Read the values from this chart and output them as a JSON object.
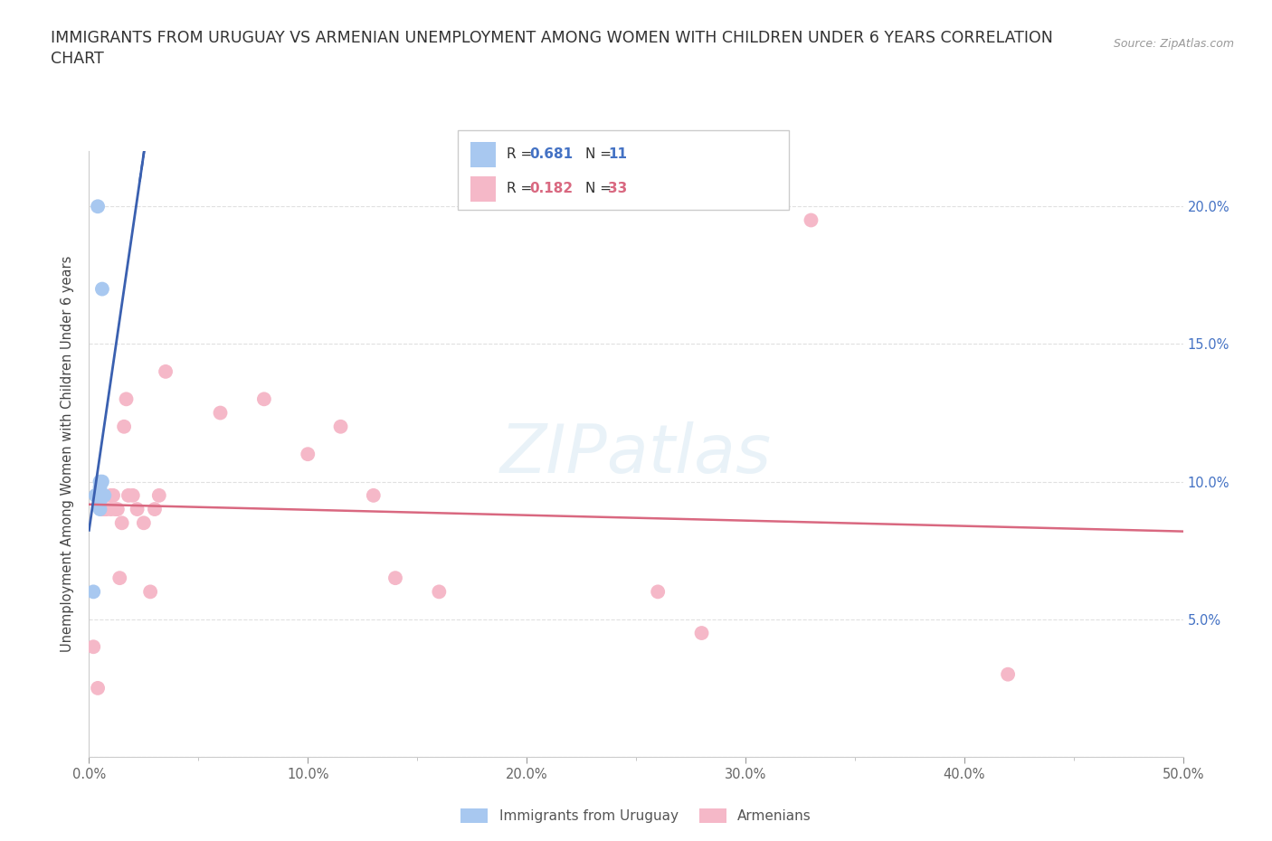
{
  "title_line1": "IMMIGRANTS FROM URUGUAY VS ARMENIAN UNEMPLOYMENT AMONG WOMEN WITH CHILDREN UNDER 6 YEARS CORRELATION",
  "title_line2": "CHART",
  "source": "Source: ZipAtlas.com",
  "ylabel": "Unemployment Among Women with Children Under 6 years",
  "watermark": "ZIPatlas",
  "xlim": [
    0,
    0.5
  ],
  "ylim": [
    0,
    0.22
  ],
  "xticks": [
    0.0,
    0.1,
    0.2,
    0.3,
    0.4,
    0.5
  ],
  "yticks": [
    0.0,
    0.05,
    0.1,
    0.15,
    0.2
  ],
  "xtick_labels": [
    "0.0%",
    "10.0%",
    "20.0%",
    "30.0%",
    "40.0%",
    "50.0%"
  ],
  "ytick_labels_right": [
    "",
    "5.0%",
    "10.0%",
    "15.0%",
    "20.0%"
  ],
  "blue_color": "#a8c8f0",
  "blue_line_color": "#3a60b0",
  "pink_color": "#f5b8c8",
  "pink_line_color": "#d96880",
  "legend_label1": "Immigrants from Uruguay",
  "legend_label2": "Armenians",
  "blue_x": [
    0.002,
    0.003,
    0.004,
    0.005,
    0.005,
    0.005,
    0.005,
    0.005,
    0.006,
    0.006,
    0.007
  ],
  "blue_y": [
    0.06,
    0.095,
    0.2,
    0.1,
    0.098,
    0.095,
    0.093,
    0.09,
    0.17,
    0.1,
    0.095
  ],
  "pink_x": [
    0.002,
    0.004,
    0.006,
    0.007,
    0.008,
    0.01,
    0.01,
    0.011,
    0.012,
    0.013,
    0.014,
    0.015,
    0.016,
    0.017,
    0.018,
    0.02,
    0.022,
    0.025,
    0.028,
    0.03,
    0.032,
    0.035,
    0.06,
    0.08,
    0.1,
    0.115,
    0.13,
    0.14,
    0.16,
    0.26,
    0.28,
    0.33,
    0.42
  ],
  "pink_y": [
    0.04,
    0.025,
    0.09,
    0.09,
    0.09,
    0.095,
    0.09,
    0.095,
    0.09,
    0.09,
    0.065,
    0.085,
    0.12,
    0.13,
    0.095,
    0.095,
    0.09,
    0.085,
    0.06,
    0.09,
    0.095,
    0.14,
    0.125,
    0.13,
    0.11,
    0.12,
    0.095,
    0.065,
    0.06,
    0.06,
    0.045,
    0.195,
    0.03
  ],
  "background_color": "#ffffff",
  "grid_color": "#e0e0e0",
  "grid_style": "--"
}
